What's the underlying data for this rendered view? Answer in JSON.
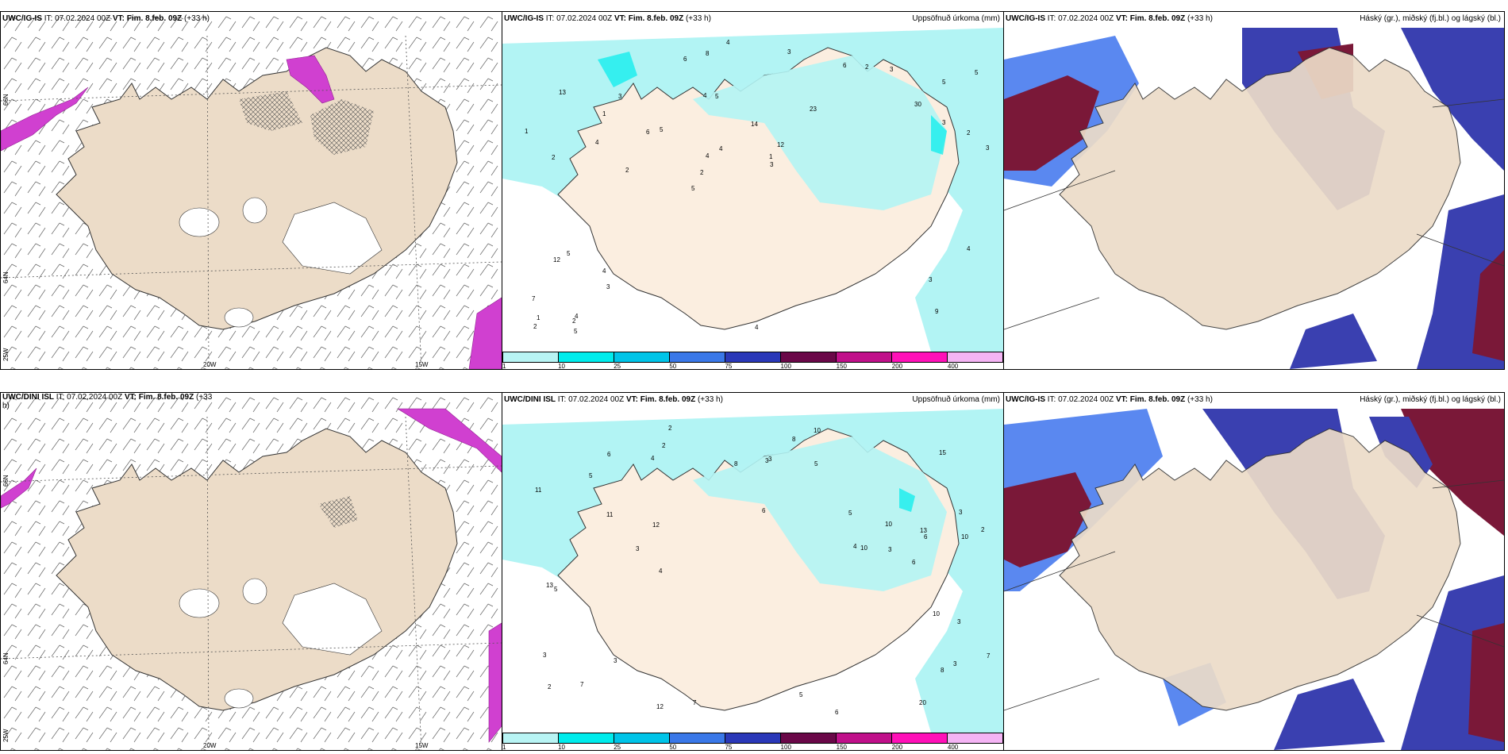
{
  "panels": [
    {
      "id": "p1",
      "title_model": "UWC/IG-IS",
      "title_it": " IT: 07.02.2024 00Z ",
      "title_vt": "VT: Fim. 8.feb. 09Z",
      "title_lead": " (+33 h)",
      "right_label": ""
    },
    {
      "id": "p2",
      "title_model": "UWC/IG-IS",
      "title_it": " IT: 07.02.2024 00Z ",
      "title_vt": "VT: Fim. 8.feb. 09Z",
      "title_lead": " (+33 h)",
      "right_label": "Uppsöfnuð úrkoma (mm)"
    },
    {
      "id": "p3",
      "title_model": "UWC/IG-IS",
      "title_it": " IT: 07.02.2024 00Z ",
      "title_vt": "VT: Fim. 8.feb. 09Z",
      "title_lead": " (+33 h)",
      "right_label": "Háský (gr.), miðský (fj.bl.) og lágský (bl.)"
    },
    {
      "id": "p4",
      "title_model": "UWC/DINI ISL",
      "title_it": " IT: 07.02.2024 00Z ",
      "title_vt": "VT: Fim. 8.feb. 09Z",
      "title_lead": " (+33",
      "title_wrap": "h)",
      "right_label": ""
    },
    {
      "id": "p5",
      "title_model": "UWC/DINI ISL",
      "title_it": " IT: 07.02.2024 00Z ",
      "title_vt": "VT: Fim. 8.feb. 09Z",
      "title_lead": " (+33 h)",
      "right_label": "Uppsöfnuð úrkoma (mm)"
    },
    {
      "id": "p6",
      "title_model": "UWC/IG-IS",
      "title_it": " IT: 07.02.2024 00Z ",
      "title_vt": "VT: Fim. 8.feb. 09Z",
      "title_lead": " (+33 h)",
      "right_label": "Háský (gr.), miðský (fj.bl.) og lágský (bl.)"
    }
  ],
  "axes": {
    "lon_20": "20W",
    "lon_15": "15W",
    "lon_25": "25W",
    "lat_66": "66N",
    "lat_64": "64N"
  },
  "colorbar": {
    "labels": [
      "1",
      "10",
      "25",
      "50",
      "75",
      "100",
      "150",
      "200",
      "400"
    ],
    "colors": [
      "#b8f4f4",
      "#00ecec",
      "#00c4e8",
      "#3a78e8",
      "#2a38b8",
      "#6a0848",
      "#c0108a",
      "#ff10b8",
      "#f4b4f4"
    ]
  },
  "precip_top": [
    "9",
    "2",
    "5",
    "5",
    "23",
    "4",
    "4",
    "14",
    "5",
    "5",
    "7",
    "3",
    "5",
    "12",
    "13",
    "8",
    "3",
    "3",
    "2",
    "4",
    "3",
    "6",
    "3",
    "4",
    "6",
    "4",
    "2",
    "1",
    "1",
    "3",
    "12",
    "30",
    "5",
    "4",
    "5",
    "2",
    "3",
    "4",
    "2",
    "1",
    "1",
    "2",
    "2",
    "3",
    "6",
    "4",
    "4"
  ],
  "precip_bottom": [
    "3",
    "3",
    "6",
    "2",
    "2",
    "13",
    "15",
    "11",
    "10",
    "11",
    "6",
    "7",
    "3",
    "5",
    "8",
    "4",
    "6",
    "13",
    "5",
    "5",
    "4",
    "8",
    "5",
    "5",
    "7",
    "12",
    "10",
    "10",
    "8",
    "20",
    "4",
    "3",
    "3",
    "3",
    "3",
    "7",
    "10",
    "12",
    "10",
    "3",
    "3",
    "2",
    "2",
    "6",
    "6"
  ],
  "colors": {
    "land": "#ecdcc8",
    "sea_precip": "#b2f4f4",
    "cloud_high": "#7a1838",
    "cloud_mid": "#3a40b0",
    "cloud_low": "#5a88f0",
    "wind_mag": "#d040d0"
  }
}
